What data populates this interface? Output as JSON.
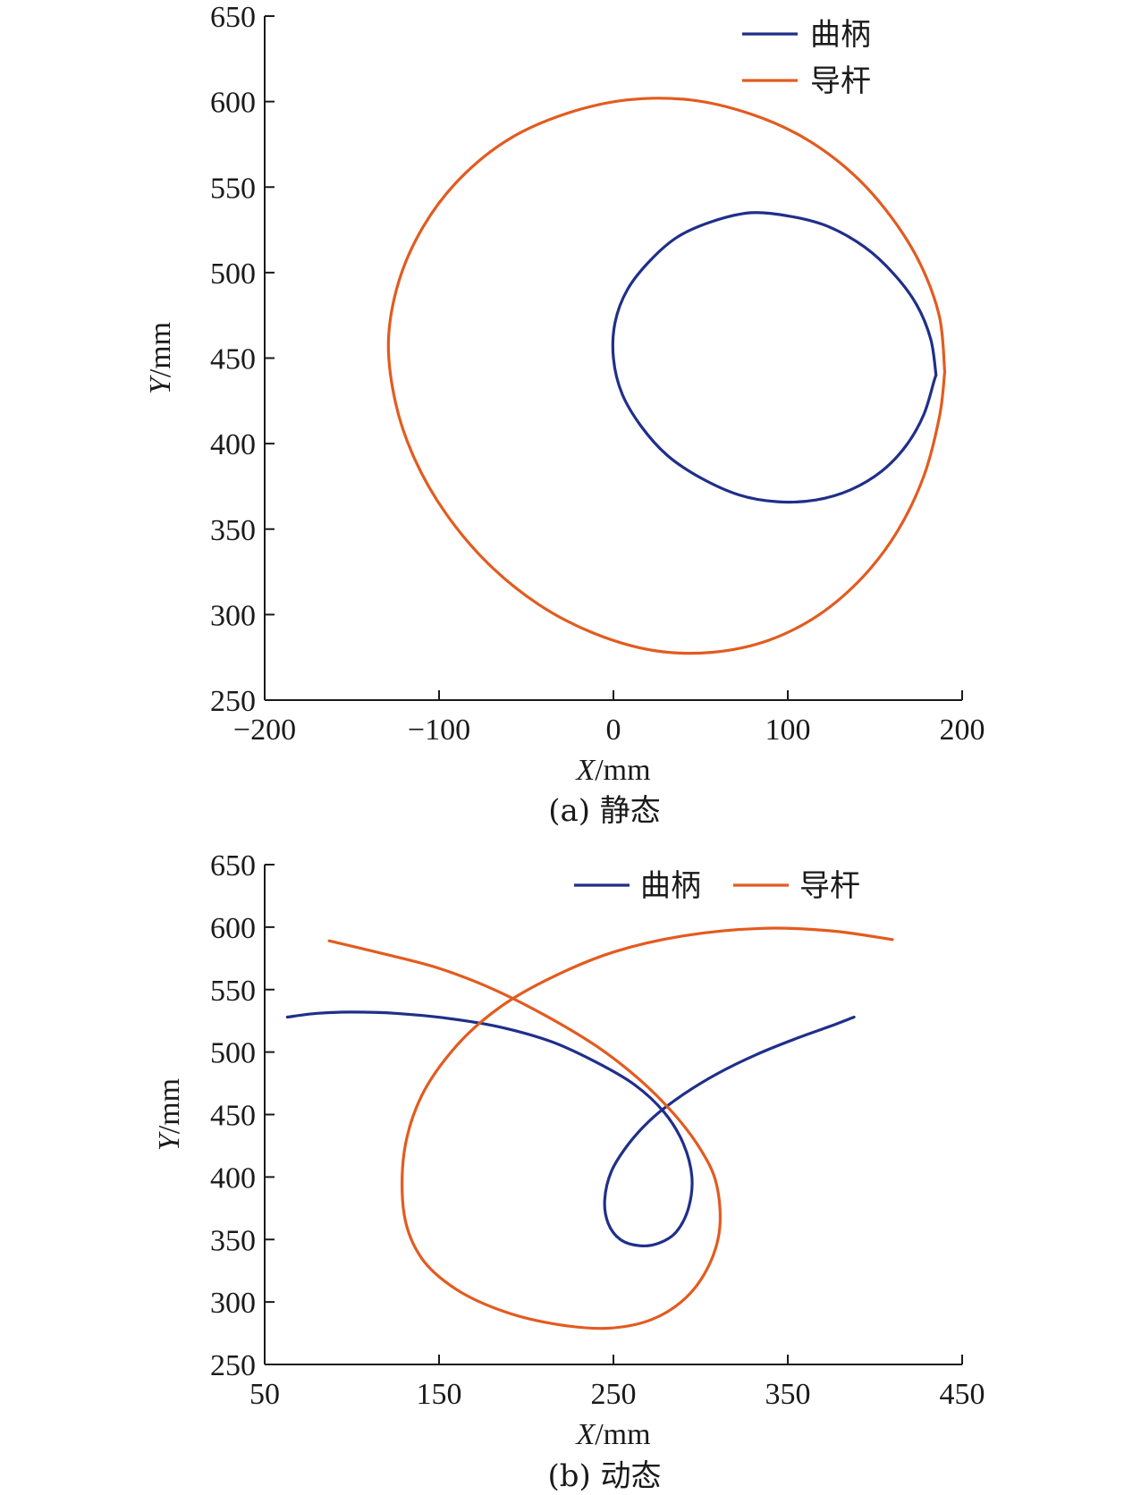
{
  "chart_data": [
    {
      "type": "line",
      "caption": "(a) 静态",
      "xlabel": "X/mm",
      "ylabel": "Y/mm",
      "xlim": [
        -200,
        200
      ],
      "ylim": [
        250,
        650
      ],
      "xticks": [
        -200,
        -100,
        0,
        100,
        200
      ],
      "xtick_labels": [
        "−200",
        "−100",
        "0",
        "100",
        "200"
      ],
      "yticks": [
        250,
        300,
        350,
        400,
        450,
        500,
        550,
        600,
        650
      ],
      "ytick_labels": [
        "250",
        "300",
        "350",
        "400",
        "450",
        "500",
        "550",
        "600",
        "650"
      ],
      "legend": {
        "placement": "top-right",
        "layout": "vertical"
      },
      "series": [
        {
          "name": "曲柄",
          "color": "#1f2f8a",
          "x": [
            185,
            182,
            174,
            161,
            144,
            123,
            101,
            79,
            57,
            37,
            21,
            8,
            1,
            0,
            5,
            16,
            31,
            50,
            72,
            94,
            116,
            136,
            154,
            168,
            178,
            184,
            185
          ],
          "y": [
            440,
            461,
            481,
            499,
            515,
            527,
            533,
            535,
            530,
            521,
            507,
            490,
            471,
            450,
            429,
            410,
            393,
            380,
            370,
            366,
            367,
            373,
            384,
            399,
            417,
            437,
            440
          ]
        },
        {
          "name": "导杆",
          "color": "#e35b1f",
          "x": [
            190,
            187,
            176,
            159,
            137,
            109,
            78,
            44,
            8,
            -27,
            -60,
            -88,
            -109,
            -123,
            -129,
            -125,
            -114,
            -96,
            -72,
            -43,
            -11,
            23,
            57,
            89,
            118,
            143,
            163,
            178,
            187,
            190
          ],
          "y": [
            442,
            474,
            505,
            533,
            558,
            579,
            593,
            601,
            601,
            593,
            578,
            555,
            527,
            495,
            460,
            424,
            391,
            359,
            330,
            306,
            289,
            279,
            278,
            285,
            300,
            322,
            349,
            381,
            416,
            442
          ]
        }
      ]
    },
    {
      "type": "line",
      "caption": "(b) 动态",
      "xlabel": "X/mm",
      "ylabel": "Y/mm",
      "xlim": [
        50,
        450
      ],
      "ylim": [
        250,
        650
      ],
      "xticks": [
        50,
        150,
        250,
        350,
        450
      ],
      "xtick_labels": [
        "50",
        "150",
        "250",
        "350",
        "450"
      ],
      "yticks": [
        250,
        300,
        350,
        400,
        450,
        500,
        550,
        600,
        650
      ],
      "ytick_labels": [
        "250",
        "300",
        "350",
        "400",
        "450",
        "500",
        "550",
        "600",
        "650"
      ],
      "legend": {
        "placement": "top-right",
        "layout": "horizontal"
      },
      "series": [
        {
          "name": "曲柄",
          "color": "#1f2f8a",
          "x": [
            63,
            80,
            100,
            125,
            155,
            185,
            215,
            240,
            262,
            279,
            290,
            295,
            293,
            286,
            276,
            265,
            254,
            247,
            245,
            249,
            259,
            273,
            290,
            310,
            332,
            355,
            375,
            388
          ],
          "y": [
            528,
            531,
            532,
            531,
            527,
            520,
            508,
            492,
            474,
            452,
            427,
            400,
            375,
            356,
            347,
            345,
            350,
            363,
            382,
            405,
            427,
            448,
            466,
            483,
            498,
            511,
            521,
            528
          ],
          "lines": [
            {
              "x": [
                63,
                80,
                100,
                125,
                155,
                185,
                215,
                240,
                262,
                279,
                290,
                295,
                293,
                286,
                276,
                265,
                254,
                247,
                245,
                249,
                259,
                273,
                290,
                310,
                332,
                355,
                375,
                388
              ],
              "y": [
                528,
                531,
                532,
                531,
                527,
                520,
                508,
                492,
                474,
                452,
                427,
                400,
                375,
                356,
                347,
                345,
                350,
                363,
                382,
                405,
                427,
                448,
                466,
                483,
                498,
                511,
                521,
                528
              ]
            }
          ]
        },
        {
          "name": "导杆",
          "color": "#e35b1f",
          "x": [
            87,
            120,
            150,
            180,
            210,
            240,
            265,
            285,
            300,
            309,
            311,
            305,
            292,
            272,
            247,
            218,
            188,
            160,
            140,
            130,
            130,
            140,
            160,
            185,
            215,
            250,
            290,
            335,
            375,
            410
          ],
          "y": [
            589,
            578,
            567,
            551,
            530,
            505,
            478,
            450,
            422,
            395,
            360,
            330,
            304,
            286,
            279,
            282,
            292,
            310,
            335,
            370,
            420,
            465,
            505,
            536,
            560,
            580,
            593,
            599,
            597,
            590
          ]
        }
      ]
    }
  ]
}
